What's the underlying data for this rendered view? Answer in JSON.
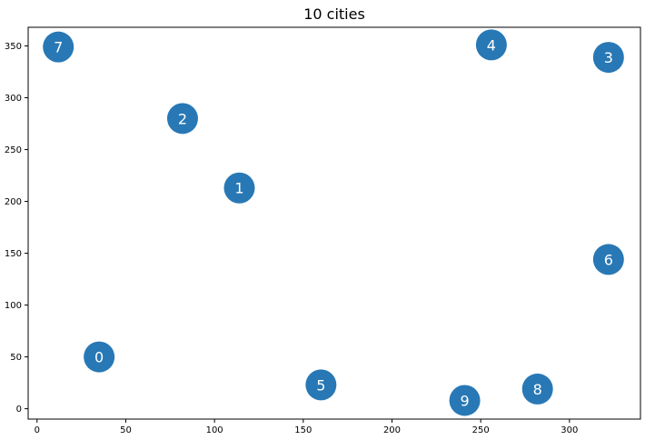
{
  "chart_data": {
    "type": "scatter",
    "title": "10 cities",
    "xlabel": "",
    "ylabel": "",
    "xlim": [
      -5,
      340
    ],
    "ylim": [
      -10,
      368
    ],
    "xticks": [
      0,
      50,
      100,
      150,
      200,
      250,
      300
    ],
    "yticks": [
      0,
      50,
      100,
      150,
      200,
      250,
      300,
      350
    ],
    "grid": false,
    "marker_color": "#2878b5",
    "label_color": "#ffffff",
    "points": [
      {
        "label": "0",
        "x": 35,
        "y": 50
      },
      {
        "label": "1",
        "x": 114,
        "y": 213
      },
      {
        "label": "2",
        "x": 82,
        "y": 280
      },
      {
        "label": "3",
        "x": 322,
        "y": 339
      },
      {
        "label": "4",
        "x": 256,
        "y": 351
      },
      {
        "label": "5",
        "x": 160,
        "y": 23
      },
      {
        "label": "6",
        "x": 322,
        "y": 144
      },
      {
        "label": "7",
        "x": 12,
        "y": 349
      },
      {
        "label": "8",
        "x": 282,
        "y": 19
      },
      {
        "label": "9",
        "x": 241,
        "y": 8
      }
    ]
  }
}
